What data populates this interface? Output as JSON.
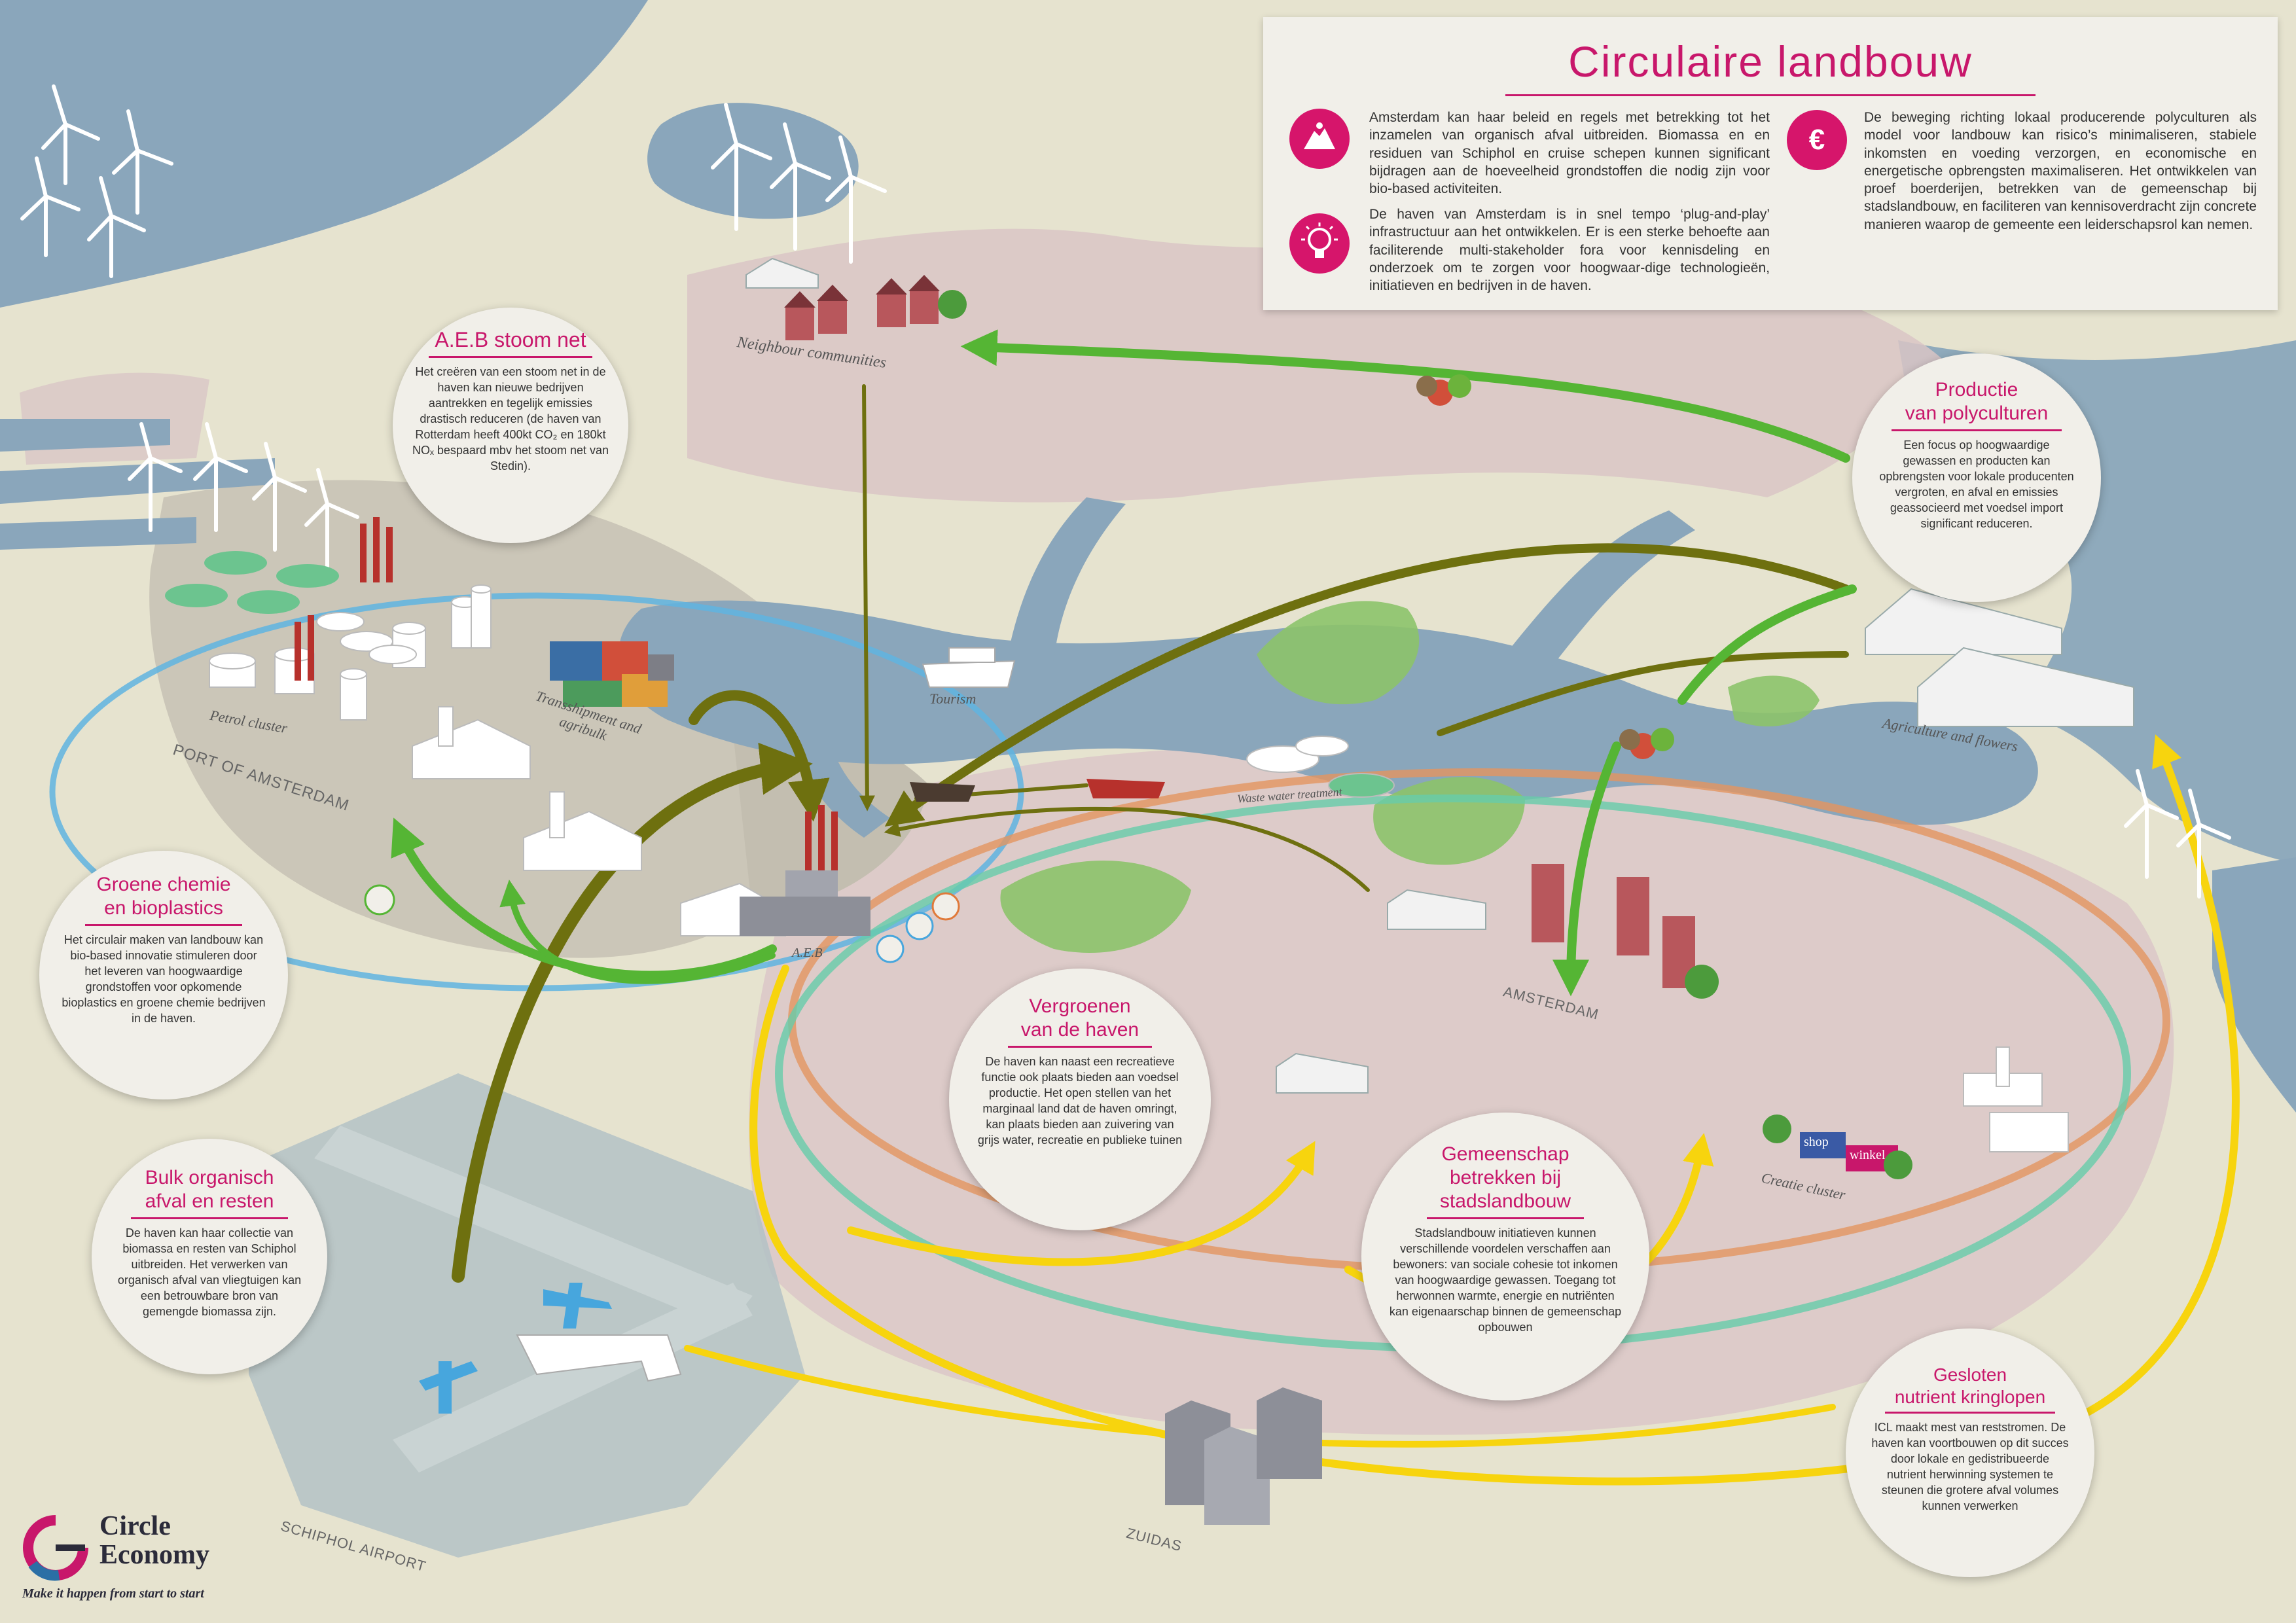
{
  "header": {
    "title": "Circulaire landbouw",
    "paragraphs": [
      "Amsterdam kan haar beleid en regels met betrekking tot het inzamelen van organisch afval uitbreiden. Biomassa en en residuen van Schiphol en cruise schepen kunnen significant bijdragen aan de hoeveelheid grondstoffen die nodig zijn voor bio-based activiteiten.",
      "De haven van Amsterdam is in snel tempo ‘plug-and-play’ infrastructuur aan het ontwikkelen. Er is een sterke behoefte aan faciliterende multi-stakeholder fora voor kennisdeling en onderzoek om te zorgen voor hoogwaar-dige technologieën, initiatieven en bedrijven in de haven.",
      "De beweging richting lokaal producerende polyculturen als model voor landbouw kan risico’s minimaliseren, stabiele inkomsten en voeding verzorgen, en economische en energetische opbrengsten maximaliseren. Het ontwikkelen van proef boerderijen, betrekken van de gemeenschap bij stadslandbouw, en faciliteren van kennisoverdracht zijn concrete manieren waarop de gemeente een leiderschapsrol kan nemen."
    ],
    "icons": [
      "waste-pile-icon",
      "lightbulb-icon",
      "euro-icon"
    ]
  },
  "bubbles": {
    "aeb": {
      "title": [
        "A.E.B stoom net"
      ],
      "body": "Het creëren van een stoom net in de haven kan nieuwe bedrijven aantrekken en tegelijk emissies drastisch reduceren (de haven van Rotterdam heeft 400kt CO₂ en 180kt NOₓ bespaard mbv het stoom net van Stedin)."
    },
    "polyculturen": {
      "title": [
        "Productie",
        "van polyculturen"
      ],
      "body": "Een focus op hoogwaardige gewassen en producten kan opbrengsten voor lokale producenten vergroten, en afval en emissies geassocieerd met voedsel import significant reduceren."
    },
    "groene": {
      "title": [
        "Groene chemie",
        "en bioplastics"
      ],
      "body": "Het circulair maken van landbouw kan bio-based innovatie stimuleren door het leveren van hoogwaardige grondstoffen voor opkomende bioplastics en groene chemie bedrijven in de haven."
    },
    "vergroenen": {
      "title": [
        "Vergroenen",
        "van de haven"
      ],
      "body": "De haven kan naast een recreatieve functie ook plaats bieden aan voedsel productie. Het open stellen van het marginaal land dat de haven omringt, kan plaats bieden aan zuivering van grijs water, recreatie en publieke tuinen"
    },
    "bulk": {
      "title": [
        "Bulk organisch",
        "afval en resten"
      ],
      "body": "De haven kan haar collectie van biomassa en resten van Schiphol uitbreiden. Het verwerken van organisch afval van vliegtuigen kan een betrouwbare bron van gemengde biomassa zijn."
    },
    "gemeenschap": {
      "title": [
        "Gemeenschap",
        "betrekken bij",
        "stadslandbouw"
      ],
      "body": "Stadslandbouw initiatieven kunnen verschillende voordelen verschaffen aan bewoners: van sociale cohesie tot inkomen van hoogwaardige gewassen. Toegang tot herwonnen warmte, energie en nutriënten kan eigenaarschap binnen de gemeenschap opbouwen"
    },
    "gesloten": {
      "title": [
        "Gesloten",
        "nutrient kringlopen"
      ],
      "body": "ICL maakt mest van reststromen. De haven kan voortbouwen op dit succes door lokale en gedistribueerde nutrient herwinning systemen te steunen die grotere afval volumes kunnen verwerken"
    }
  },
  "map_labels": {
    "neighbour": "Neighbour communities",
    "petrol": "Petrol cluster",
    "transshipment": "Transshipment and agribulk",
    "port": "PORT OF AMSTERDAM",
    "tourism": "Tourism",
    "aeb": "A.E.B",
    "waste_water": "Waste water treatment",
    "agriculture": "Agriculture and flowers",
    "amsterdam": "AMSTERDAM",
    "creatie": "Creatie cluster",
    "zuidas": "ZUIDAS",
    "schiphol": "SCHIPHOL AIRPORT",
    "shop": "shop",
    "winkel": "winkel"
  },
  "logo": {
    "name": "Circle\nEconomy",
    "tagline": "Make it happen from start to start"
  },
  "colors": {
    "accent": "#c8176b",
    "water": "#8aa6bb",
    "land": "#e6e3cf",
    "urban": "#d9c6c6",
    "port": "#cbc6b8",
    "arrow_olive": "#6e700f",
    "arrow_green": "#55b534",
    "arrow_yellow": "#f7d40e",
    "ring_blue": "#5fb4e0",
    "ring_orange": "#e39560",
    "ring_teal": "#66ccaa"
  }
}
